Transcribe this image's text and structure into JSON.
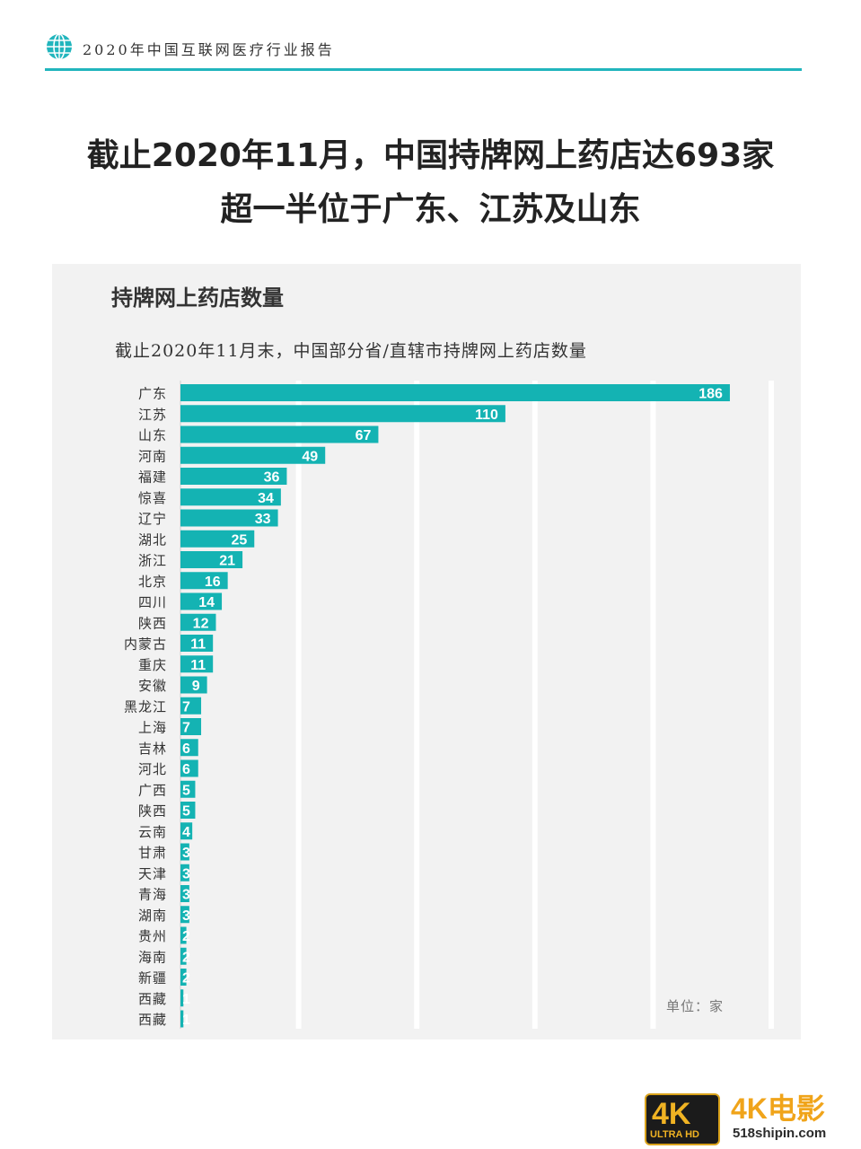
{
  "header": {
    "report_title": "2020年中国互联网医疗行业报告"
  },
  "headline": {
    "line1": "截止2020年11月，中国持牌网上药店达693家",
    "line2": "超一半位于广东、江苏及山东"
  },
  "panel": {
    "title": "持牌网上药店数量",
    "subtitle": "截止2020年11月末，中国部分省/直辖市持牌网上药店数量",
    "unit": "单位：家"
  },
  "colors": {
    "accent": "#21b5bd",
    "bar": "#14b3b3",
    "panel_bg": "#f2f2f2"
  },
  "chart_data": {
    "type": "bar",
    "orientation": "horizontal",
    "categories": [
      "广东",
      "江苏",
      "山东",
      "河南",
      "福建",
      "惊喜",
      "辽宁",
      "湖北",
      "浙江",
      "北京",
      "四川",
      "陕西",
      "内蒙古",
      "重庆",
      "安徽",
      "黑龙江",
      "上海",
      "吉林",
      "河北",
      "广西",
      "陕西",
      "云南",
      "甘肃",
      "天津",
      "青海",
      "湖南",
      "贵州",
      "海南",
      "新疆",
      "西藏",
      "西藏"
    ],
    "values": [
      186,
      110,
      67,
      49,
      36,
      34,
      33,
      25,
      21,
      16,
      14,
      12,
      11,
      11,
      9,
      7,
      7,
      6,
      6,
      5,
      5,
      4,
      3,
      3,
      3,
      3,
      2,
      2,
      2,
      1,
      1
    ],
    "title": "持牌网上药店数量",
    "xlim": [
      0,
      200
    ],
    "grid": true
  },
  "watermark": {
    "badge_big": "4K",
    "badge_small": "ULTRA HD",
    "brand": "4K电影",
    "url": "518shipin.com"
  }
}
